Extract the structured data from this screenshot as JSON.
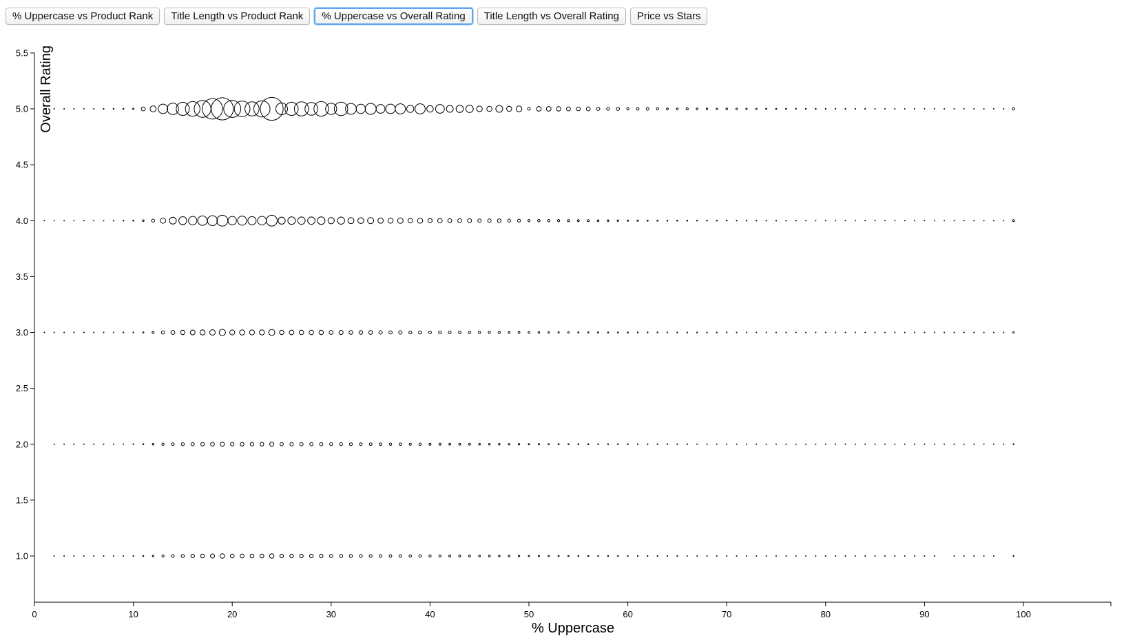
{
  "tabs": [
    {
      "label": "% Uppercase vs Product Rank",
      "active": false
    },
    {
      "label": "Title Length vs Product Rank",
      "active": false
    },
    {
      "label": "% Uppercase vs Overall Rating",
      "active": true
    },
    {
      "label": "Title Length vs Overall Rating",
      "active": false
    },
    {
      "label": "Price vs Stars",
      "active": false
    }
  ],
  "chart_data": {
    "type": "scatter",
    "xlabel": "% Uppercase",
    "ylabel": "Overall Rating",
    "xlim": [
      0,
      109
    ],
    "ylim": [
      0.75,
      5.5
    ],
    "xticks": [
      0,
      10,
      20,
      30,
      40,
      50,
      60,
      70,
      80,
      90,
      100
    ],
    "yticks": [
      1.0,
      1.5,
      2.0,
      2.5,
      3.0,
      3.5,
      4.0,
      4.5,
      5.0,
      5.5
    ],
    "grid": false,
    "point_style": "hollow circles; size encodes count",
    "series": [
      {
        "rating": 5.0,
        "x": [
          1,
          2,
          3,
          4,
          5,
          6,
          7,
          8,
          9,
          10,
          11,
          12,
          13,
          14,
          15,
          16,
          17,
          18,
          19,
          20,
          21,
          22,
          23,
          24,
          25,
          26,
          27,
          28,
          29,
          30,
          31,
          32,
          33,
          34,
          35,
          36,
          37,
          38,
          39,
          40,
          41,
          42,
          43,
          44,
          45,
          46,
          47,
          48,
          49,
          50,
          51,
          52,
          53,
          54,
          55,
          56,
          57,
          58,
          59,
          60,
          61,
          62,
          63,
          64,
          65,
          66,
          67,
          68,
          69,
          70,
          71,
          72,
          73,
          74,
          75,
          76,
          77,
          78,
          79,
          80,
          81,
          82,
          83,
          84,
          85,
          86,
          87,
          88,
          89,
          90,
          91,
          92,
          93,
          94,
          95,
          96,
          97,
          98,
          99
        ],
        "r": [
          0.5,
          0.5,
          0.5,
          0.5,
          0.5,
          0.5,
          0.6,
          0.7,
          0.8,
          1.0,
          2.9,
          4.4,
          6.9,
          8.3,
          9.5,
          10.6,
          12.2,
          14.8,
          16.1,
          12.4,
          11.4,
          10.3,
          11.8,
          16.6,
          8.5,
          9.6,
          10.3,
          9.3,
          10.6,
          8.1,
          9.8,
          7.9,
          6.8,
          8.0,
          6.4,
          6.9,
          7.4,
          5.2,
          7.4,
          4.8,
          6.4,
          5.0,
          5.3,
          5.4,
          4.1,
          3.8,
          5.0,
          3.7,
          4.2,
          2.0,
          3.4,
          3.4,
          3.2,
          2.9,
          2.8,
          2.9,
          2.4,
          2.1,
          2.3,
          1.7,
          1.9,
          2.0,
          1.6,
          1.4,
          1.3,
          1.6,
          1.3,
          1.1,
          1.0,
          1.2,
          1.1,
          1.0,
          0.9,
          0.9,
          0.8,
          0.8,
          0.7,
          0.7,
          0.7,
          0.6,
          0.6,
          0.6,
          0.6,
          0.6,
          0.5,
          0.5,
          0.5,
          0.5,
          0.5,
          0.5,
          0.5,
          0.5,
          0.5,
          0.5,
          0.5,
          0.5,
          0.5,
          0.5,
          1.8
        ]
      },
      {
        "rating": 4.0,
        "x": [
          1,
          2,
          3,
          4,
          5,
          6,
          7,
          8,
          9,
          10,
          11,
          12,
          13,
          14,
          15,
          16,
          17,
          18,
          19,
          20,
          21,
          22,
          23,
          24,
          25,
          26,
          27,
          28,
          29,
          30,
          31,
          32,
          33,
          34,
          35,
          36,
          37,
          38,
          39,
          40,
          41,
          42,
          43,
          44,
          45,
          46,
          47,
          48,
          49,
          50,
          51,
          52,
          53,
          54,
          55,
          56,
          57,
          58,
          59,
          60,
          61,
          62,
          63,
          64,
          65,
          66,
          67,
          68,
          69,
          70,
          71,
          72,
          73,
          74,
          75,
          76,
          77,
          78,
          79,
          80,
          81,
          82,
          83,
          84,
          85,
          86,
          87,
          88,
          89,
          90,
          91,
          92,
          93,
          94,
          95,
          96,
          97,
          98,
          99
        ],
        "r": [
          0.5,
          0.5,
          0.5,
          0.5,
          0.5,
          0.5,
          0.5,
          0.6,
          0.7,
          0.8,
          1.2,
          2.2,
          3.8,
          5.0,
          5.8,
          6.1,
          6.9,
          7.2,
          7.9,
          6.1,
          6.6,
          6.0,
          6.3,
          7.9,
          5.1,
          5.5,
          5.4,
          5.4,
          5.5,
          4.6,
          5.2,
          4.4,
          4.3,
          4.5,
          3.9,
          3.8,
          4.0,
          3.3,
          3.8,
          3.1,
          3.3,
          2.9,
          2.9,
          2.9,
          2.5,
          2.5,
          2.6,
          2.2,
          2.1,
          1.6,
          1.8,
          1.7,
          1.6,
          1.5,
          1.4,
          1.4,
          1.3,
          1.2,
          1.1,
          1.0,
          1.0,
          0.9,
          0.9,
          0.8,
          0.8,
          0.8,
          0.7,
          0.7,
          0.7,
          0.7,
          0.6,
          0.6,
          0.6,
          0.6,
          0.6,
          0.6,
          0.6,
          0.5,
          0.5,
          0.5,
          0.5,
          0.5,
          0.5,
          0.5,
          0.5,
          0.5,
          0.5,
          0.5,
          0.5,
          0.5,
          0.5,
          0.5,
          0.5,
          0.5,
          0.5,
          0.5,
          0.5,
          0.5,
          1.4
        ]
      },
      {
        "rating": 3.0,
        "x": [
          1,
          2,
          3,
          4,
          5,
          6,
          7,
          8,
          9,
          10,
          11,
          12,
          13,
          14,
          15,
          16,
          17,
          18,
          19,
          20,
          21,
          22,
          23,
          24,
          25,
          26,
          27,
          28,
          29,
          30,
          31,
          32,
          33,
          34,
          35,
          36,
          37,
          38,
          39,
          40,
          41,
          42,
          43,
          44,
          45,
          46,
          47,
          48,
          49,
          50,
          51,
          52,
          53,
          54,
          55,
          56,
          57,
          58,
          59,
          60,
          61,
          62,
          63,
          64,
          65,
          66,
          67,
          68,
          69,
          70,
          71,
          72,
          73,
          74,
          75,
          76,
          77,
          78,
          79,
          80,
          81,
          82,
          83,
          84,
          85,
          86,
          87,
          88,
          89,
          90,
          91,
          92,
          93,
          94,
          95,
          96,
          97,
          98,
          99
        ],
        "r": [
          0.5,
          0.5,
          0.5,
          0.5,
          0.5,
          0.5,
          0.5,
          0.5,
          0.6,
          0.6,
          0.9,
          1.5,
          2.4,
          2.9,
          3.2,
          3.5,
          3.7,
          4.0,
          4.6,
          3.6,
          3.8,
          3.6,
          3.7,
          4.4,
          3.2,
          3.4,
          3.3,
          3.3,
          3.2,
          2.9,
          3.0,
          2.8,
          2.7,
          2.8,
          2.5,
          2.4,
          2.5,
          2.1,
          2.3,
          2.0,
          2.1,
          1.9,
          1.9,
          1.8,
          1.7,
          1.6,
          1.6,
          1.4,
          1.4,
          1.2,
          1.2,
          1.1,
          1.0,
          1.0,
          0.9,
          0.9,
          0.9,
          0.8,
          0.8,
          0.8,
          0.7,
          0.7,
          0.7,
          0.6,
          0.6,
          0.6,
          0.6,
          0.6,
          0.6,
          0.6,
          0.5,
          0.5,
          0.5,
          0.5,
          0.5,
          0.5,
          0.5,
          0.5,
          0.5,
          0.5,
          0.5,
          0.5,
          0.5,
          0.5,
          0.5,
          0.5,
          0.5,
          0.5,
          0.5,
          0.5,
          0.5,
          0.5,
          0.5,
          0.5,
          0.5,
          0.5,
          0.5,
          0.5,
          1.0
        ]
      },
      {
        "rating": 2.0,
        "x": [
          2,
          3,
          4,
          5,
          6,
          7,
          8,
          9,
          10,
          11,
          12,
          13,
          14,
          15,
          16,
          17,
          18,
          19,
          20,
          21,
          22,
          23,
          24,
          25,
          26,
          27,
          28,
          29,
          30,
          31,
          32,
          33,
          34,
          35,
          36,
          37,
          38,
          39,
          40,
          41,
          42,
          43,
          44,
          45,
          46,
          47,
          48,
          49,
          50,
          51,
          52,
          53,
          54,
          55,
          56,
          57,
          58,
          59,
          60,
          61,
          62,
          63,
          64,
          65,
          66,
          67,
          68,
          69,
          70,
          71,
          72,
          73,
          74,
          75,
          76,
          77,
          78,
          79,
          80,
          81,
          82,
          83,
          84,
          85,
          86,
          87,
          88,
          89,
          90,
          91,
          92,
          93,
          94,
          95,
          96,
          97,
          98,
          99
        ],
        "r": [
          0.5,
          0.5,
          0.5,
          0.5,
          0.5,
          0.5,
          0.5,
          0.5,
          0.6,
          0.8,
          1.2,
          1.7,
          2.0,
          2.2,
          2.4,
          2.6,
          2.8,
          3.0,
          2.6,
          2.7,
          2.6,
          2.7,
          3.0,
          2.4,
          2.5,
          2.4,
          2.4,
          2.4,
          2.2,
          2.2,
          2.1,
          2.0,
          2.0,
          1.9,
          1.8,
          1.8,
          1.6,
          1.7,
          1.5,
          1.5,
          1.4,
          1.4,
          1.4,
          1.3,
          1.2,
          1.2,
          1.1,
          1.1,
          1.0,
          1.0,
          0.9,
          0.9,
          0.8,
          0.8,
          0.8,
          0.7,
          0.7,
          0.7,
          0.7,
          0.6,
          0.6,
          0.6,
          0.6,
          0.6,
          0.6,
          0.5,
          0.5,
          0.5,
          0.5,
          0.5,
          0.5,
          0.5,
          0.5,
          0.5,
          0.5,
          0.5,
          0.5,
          0.5,
          0.5,
          0.5,
          0.5,
          0.5,
          0.5,
          0.5,
          0.5,
          0.5,
          0.5,
          0.5,
          0.5,
          0.5,
          0.5,
          0.5,
          0.5,
          0.5,
          0.5,
          0.5,
          0.5,
          0.7
        ]
      },
      {
        "rating": 1.0,
        "x": [
          2,
          3,
          4,
          5,
          6,
          7,
          8,
          9,
          10,
          11,
          12,
          13,
          14,
          15,
          16,
          17,
          18,
          19,
          20,
          21,
          22,
          23,
          24,
          25,
          26,
          27,
          28,
          29,
          30,
          31,
          32,
          33,
          34,
          35,
          36,
          37,
          38,
          39,
          40,
          41,
          42,
          43,
          44,
          45,
          46,
          47,
          48,
          49,
          50,
          51,
          52,
          53,
          54,
          55,
          56,
          57,
          58,
          59,
          60,
          61,
          62,
          63,
          64,
          65,
          66,
          67,
          68,
          69,
          70,
          71,
          72,
          73,
          74,
          75,
          76,
          77,
          78,
          79,
          80,
          81,
          82,
          83,
          84,
          85,
          86,
          87,
          88,
          89,
          90,
          91,
          93,
          94,
          95,
          96,
          97,
          99
        ],
        "r": [
          0.5,
          0.5,
          0.5,
          0.5,
          0.5,
          0.5,
          0.5,
          0.5,
          0.6,
          0.8,
          1.1,
          1.6,
          2.0,
          2.3,
          2.6,
          2.8,
          3.0,
          3.3,
          2.8,
          2.9,
          2.8,
          2.8,
          3.2,
          2.6,
          2.7,
          2.6,
          2.6,
          2.6,
          2.4,
          2.4,
          2.3,
          2.2,
          2.1,
          2.0,
          1.9,
          1.9,
          1.8,
          1.8,
          1.7,
          1.6,
          1.5,
          1.5,
          1.4,
          1.3,
          1.3,
          1.2,
          1.2,
          1.1,
          1.0,
          1.0,
          0.9,
          0.9,
          0.9,
          0.8,
          0.8,
          0.7,
          0.7,
          0.7,
          0.6,
          0.6,
          0.6,
          0.6,
          0.6,
          0.6,
          0.5,
          0.5,
          0.5,
          0.5,
          0.5,
          0.5,
          0.5,
          0.5,
          0.5,
          0.5,
          0.5,
          0.5,
          0.5,
          0.5,
          0.5,
          0.5,
          0.5,
          0.5,
          0.5,
          0.5,
          0.5,
          0.5,
          0.5,
          0.5,
          0.5,
          0.5,
          0.5,
          0.5,
          0.5,
          0.5,
          0.5,
          0.7
        ]
      }
    ]
  }
}
